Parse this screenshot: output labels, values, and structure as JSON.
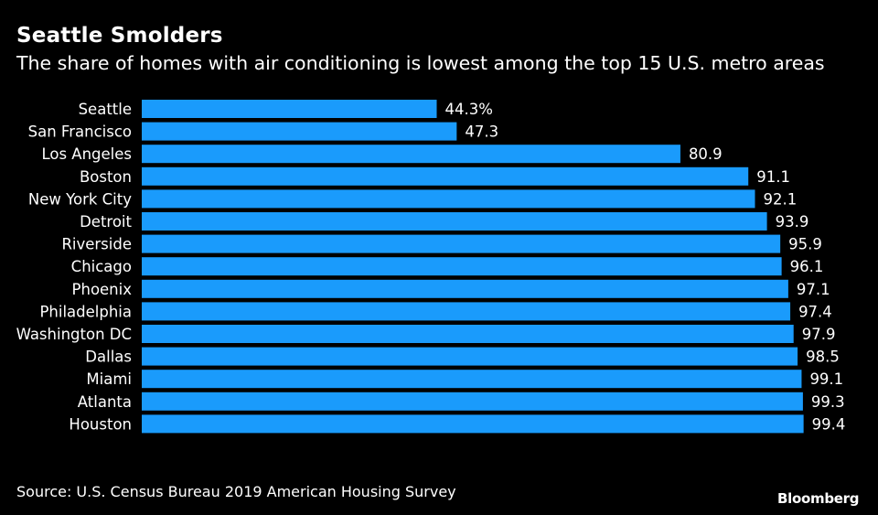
{
  "chart_data": {
    "type": "bar",
    "orientation": "horizontal",
    "title": "Seattle Smolders",
    "subtitle": "The share of homes with air conditioning is lowest among the top 15 U.S. metro areas",
    "categories": [
      "Seattle",
      "San Francisco",
      "Los Angeles",
      "Boston",
      "New York City",
      "Detroit",
      "Riverside",
      "Chicago",
      "Phoenix",
      "Philadelphia",
      "Washington DC",
      "Dallas",
      "Miami",
      "Atlanta",
      "Houston"
    ],
    "values": [
      44.3,
      47.3,
      80.9,
      91.1,
      92.1,
      93.9,
      95.9,
      96.1,
      97.1,
      97.4,
      97.9,
      98.5,
      99.1,
      99.3,
      99.4
    ],
    "value_labels": [
      "44.3%",
      "47.3",
      "80.9",
      "91.1",
      "92.1",
      "93.9",
      "95.9",
      "96.1",
      "97.1",
      "97.4",
      "97.9",
      "98.5",
      "99.1",
      "99.3",
      "99.4"
    ],
    "xlim": [
      0,
      100
    ],
    "grid": false,
    "bar_color": "#1a9bfc",
    "background_color": "#000000"
  },
  "source": "Source: U.S. Census Bureau 2019 American Housing Survey",
  "logo": "Bloomberg"
}
